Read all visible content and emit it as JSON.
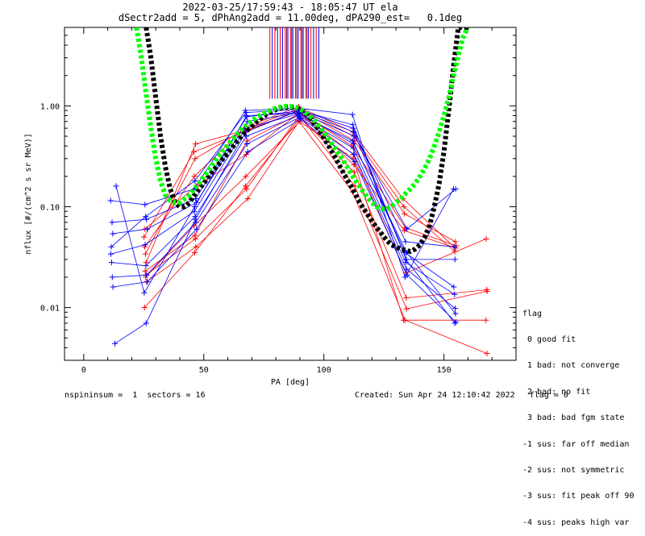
{
  "chart_data": {
    "type": "scatter",
    "title": "2022-03-25/17:59:43 - 18:05:47 UT ela",
    "subtitle": "dSectr2add = 5, dPhAng2add = 11.00deg, dPA290_est=   0.1deg",
    "xlabel": "PA [deg]",
    "ylabel": "nflux [#/(cm^2 s sr MeV)]",
    "xlim": [
      -8,
      180
    ],
    "ylim": [
      0.003,
      6.0
    ],
    "yscale": "log",
    "xticks": [
      0,
      50,
      100,
      150
    ],
    "yticks": [
      0.01,
      0.1,
      1.0
    ],
    "ytick_labels": [
      "0.01",
      "0.10",
      "1.00"
    ],
    "grid": false,
    "colors": {
      "red": "#ff0000",
      "blue": "#0000ff",
      "green": "#00ff00",
      "black": "#000000",
      "purple": "#800040"
    },
    "vertical_lines": {
      "red": [
        77.5,
        79.6,
        81.8,
        83.9,
        86.1,
        88.2,
        90.4,
        92.5,
        94.6,
        96.8
      ],
      "blue": [
        78.5,
        80.7,
        82.8,
        85.0,
        87.1,
        89.3,
        91.4,
        93.6,
        95.7,
        97.9
      ],
      "purple": [
        84.5,
        86.6,
        88.7,
        90.9,
        93.0
      ],
      "y_range": [
        1.18,
        6.0
      ]
    },
    "series": [
      {
        "color": "red",
        "values": [
          [
            25.4,
            0.04
          ],
          [
            46.1,
            0.2
          ],
          [
            67.6,
            0.62
          ],
          [
            89.5,
            0.98
          ],
          [
            112.1,
            0.55
          ],
          [
            133.0,
            0.12
          ],
          [
            154.2,
            0.04
          ]
        ]
      },
      {
        "color": "red",
        "values": [
          [
            25.7,
            0.034
          ],
          [
            46.4,
            0.3
          ],
          [
            67.9,
            0.6
          ],
          [
            89.9,
            0.94
          ],
          [
            112.4,
            0.5
          ],
          [
            133.3,
            0.1
          ],
          [
            154.5,
            0.036
          ]
        ]
      },
      {
        "color": "red",
        "values": [
          [
            26.0,
            0.028
          ],
          [
            46.6,
            0.42
          ],
          [
            68.2,
            0.58
          ],
          [
            90.3,
            0.9
          ],
          [
            112.7,
            0.45
          ],
          [
            133.6,
            0.085
          ],
          [
            154.8,
            0.045
          ]
        ]
      },
      {
        "color": "red",
        "values": [
          [
            25.1,
            0.05
          ],
          [
            45.9,
            0.35
          ],
          [
            67.3,
            0.56
          ],
          [
            89.1,
            0.88
          ],
          [
            111.8,
            0.4
          ],
          [
            133.9,
            0.062
          ],
          [
            155.1,
            0.041
          ]
        ]
      },
      {
        "color": "red",
        "values": [
          [
            25.6,
            0.023
          ],
          [
            46.3,
            0.052
          ],
          [
            68.0,
            0.45
          ],
          [
            90.1,
            0.84
          ],
          [
            112.3,
            0.33
          ],
          [
            134.1,
            0.022
          ],
          [
            167.6,
            0.048
          ]
        ]
      },
      {
        "color": "red",
        "values": [
          [
            25.9,
            0.021
          ],
          [
            46.5,
            0.048
          ],
          [
            67.8,
            0.15
          ],
          [
            89.7,
            0.8
          ],
          [
            112.6,
            0.22
          ],
          [
            134.3,
            0.0125
          ],
          [
            167.8,
            0.015
          ]
        ]
      },
      {
        "color": "red",
        "values": [
          [
            26.2,
            0.018
          ],
          [
            46.7,
            0.04
          ],
          [
            68.3,
            0.12
          ],
          [
            90.6,
            0.76
          ],
          [
            112.9,
            0.16
          ],
          [
            134.4,
            0.0097
          ],
          [
            168.0,
            0.0145
          ]
        ]
      },
      {
        "color": "red",
        "values": [
          [
            25.3,
            0.01
          ],
          [
            46.2,
            0.035
          ],
          [
            67.4,
            0.16
          ],
          [
            89.3,
            0.72
          ],
          [
            112.0,
            0.14
          ],
          [
            133.8,
            0.0075
          ],
          [
            167.9,
            0.0035
          ]
        ]
      },
      {
        "color": "red",
        "values": [
          [
            25.8,
            0.02
          ],
          [
            46.0,
            0.065
          ],
          [
            67.5,
            0.2
          ],
          [
            90.0,
            0.7
          ],
          [
            112.2,
            0.3
          ],
          [
            133.2,
            0.0075
          ],
          [
            167.5,
            0.0075
          ]
        ]
      },
      {
        "color": "red",
        "values": [
          [
            25.5,
            0.06
          ],
          [
            46.8,
            0.16
          ],
          [
            67.7,
            0.33
          ],
          [
            89.8,
            0.86
          ],
          [
            112.5,
            0.26
          ],
          [
            133.5,
            0.058
          ],
          [
            154.9,
            0.039
          ]
        ]
      },
      {
        "color": "blue",
        "values": [
          [
            11.2,
            0.115
          ],
          [
            25.5,
            0.105
          ],
          [
            46.0,
            0.15
          ],
          [
            67.3,
            0.9
          ],
          [
            89.2,
            0.95
          ],
          [
            111.9,
            0.82
          ],
          [
            133.8,
            0.02
          ],
          [
            154.0,
            0.15
          ]
        ]
      },
      {
        "color": "blue",
        "values": [
          [
            11.5,
            0.04
          ],
          [
            25.8,
            0.08
          ],
          [
            46.3,
            0.18
          ],
          [
            67.6,
            0.86
          ],
          [
            89.5,
            0.92
          ],
          [
            112.2,
            0.6
          ],
          [
            134.0,
            0.045
          ],
          [
            154.3,
            0.04
          ]
        ]
      },
      {
        "color": "blue",
        "values": [
          [
            11.8,
            0.07
          ],
          [
            26.1,
            0.075
          ],
          [
            46.6,
            0.12
          ],
          [
            67.9,
            0.78
          ],
          [
            89.8,
            0.89
          ],
          [
            112.5,
            0.55
          ],
          [
            134.3,
            0.03
          ],
          [
            154.6,
            0.03
          ]
        ]
      },
      {
        "color": "blue",
        "values": [
          [
            12.1,
            0.054
          ],
          [
            26.4,
            0.06
          ],
          [
            46.9,
            0.11
          ],
          [
            68.2,
            0.7
          ],
          [
            90.1,
            0.86
          ],
          [
            112.8,
            0.5
          ],
          [
            134.6,
            0.06
          ],
          [
            154.9,
            0.15
          ]
        ]
      },
      {
        "color": "blue",
        "values": [
          [
            11.3,
            0.034
          ],
          [
            25.6,
            0.042
          ],
          [
            46.1,
            0.09
          ],
          [
            67.4,
            0.6
          ],
          [
            89.3,
            0.83
          ],
          [
            112.0,
            0.45
          ],
          [
            133.9,
            0.035
          ],
          [
            154.1,
            0.016
          ]
        ]
      },
      {
        "color": "blue",
        "values": [
          [
            11.6,
            0.028
          ],
          [
            25.9,
            0.026
          ],
          [
            46.4,
            0.08
          ],
          [
            67.7,
            0.5
          ],
          [
            89.6,
            0.8
          ],
          [
            112.3,
            0.38
          ],
          [
            134.1,
            0.028
          ],
          [
            154.4,
            0.0135
          ]
        ]
      },
      {
        "color": "blue",
        "values": [
          [
            11.9,
            0.02
          ],
          [
            26.2,
            0.021
          ],
          [
            46.7,
            0.07
          ],
          [
            68.0,
            0.42
          ],
          [
            89.9,
            0.77
          ],
          [
            112.6,
            0.33
          ],
          [
            134.4,
            0.024
          ],
          [
            154.7,
            0.0098
          ]
        ]
      },
      {
        "color": "blue",
        "values": [
          [
            12.2,
            0.016
          ],
          [
            26.5,
            0.018
          ],
          [
            47.0,
            0.06
          ],
          [
            68.3,
            0.35
          ],
          [
            90.2,
            0.74
          ],
          [
            112.9,
            0.28
          ],
          [
            134.7,
            0.021
          ],
          [
            155.0,
            0.0072
          ]
        ]
      },
      {
        "color": "blue",
        "values": [
          [
            13.0,
            0.0044
          ],
          [
            26.0,
            0.007
          ],
          [
            46.5,
            0.075
          ],
          [
            67.5,
            0.55
          ],
          [
            89.4,
            0.9
          ],
          [
            112.1,
            0.65
          ],
          [
            134.2,
            0.03
          ],
          [
            154.5,
            0.007
          ]
        ]
      },
      {
        "color": "blue",
        "values": [
          [
            13.5,
            0.16
          ],
          [
            25.2,
            0.014
          ],
          [
            46.2,
            0.1
          ],
          [
            67.8,
            0.8
          ],
          [
            89.7,
            0.85
          ],
          [
            112.4,
            0.42
          ],
          [
            134.5,
            0.035
          ],
          [
            154.8,
            0.0087
          ]
        ]
      }
    ],
    "model_fits": [
      {
        "color": "black",
        "pa": [
          26,
          28,
          30,
          32,
          34,
          36,
          38,
          40,
          42,
          44,
          46,
          48,
          50,
          52,
          54,
          56,
          58,
          60,
          62,
          64,
          66,
          68,
          70,
          72,
          74,
          76,
          78,
          80,
          82,
          84,
          86,
          88,
          90,
          92,
          94,
          96,
          98,
          100,
          102,
          104,
          106,
          108,
          110,
          112,
          114,
          116,
          118,
          120,
          122,
          124,
          126,
          128,
          130,
          132,
          134,
          136,
          138,
          140,
          142,
          144,
          146,
          148,
          150,
          152,
          154,
          156,
          158,
          160
        ],
        "values": [
          6.0,
          3.0,
          1.2,
          0.5,
          0.25,
          0.15,
          0.11,
          0.1,
          0.1,
          0.11,
          0.13,
          0.15,
          0.17,
          0.2,
          0.23,
          0.26,
          0.3,
          0.34,
          0.39,
          0.45,
          0.51,
          0.57,
          0.63,
          0.7,
          0.76,
          0.82,
          0.87,
          0.92,
          0.95,
          0.97,
          0.98,
          0.97,
          0.93,
          0.86,
          0.77,
          0.67,
          0.57,
          0.48,
          0.4,
          0.33,
          0.27,
          0.22,
          0.18,
          0.15,
          0.12,
          0.1,
          0.085,
          0.072,
          0.062,
          0.054,
          0.047,
          0.042,
          0.04,
          0.038,
          0.037,
          0.036,
          0.038,
          0.042,
          0.05,
          0.065,
          0.1,
          0.17,
          0.35,
          0.9,
          2.5,
          6.0,
          6.0,
          6.0
        ]
      },
      {
        "color": "green",
        "pa": [
          22,
          24,
          26,
          28,
          30,
          32,
          34,
          36,
          38,
          40,
          42,
          44,
          46,
          48,
          50,
          52,
          54,
          56,
          58,
          60,
          62,
          64,
          66,
          68,
          70,
          72,
          74,
          76,
          78,
          80,
          82,
          84,
          86,
          88,
          90,
          92,
          94,
          96,
          98,
          100,
          102,
          104,
          106,
          108,
          110,
          112,
          114,
          116,
          118,
          120,
          122,
          124,
          126,
          128,
          130,
          132,
          134,
          136,
          138,
          140,
          142,
          144,
          146,
          148,
          150,
          152,
          154,
          156,
          158,
          160
        ],
        "values": [
          6.0,
          3.0,
          1.3,
          0.6,
          0.3,
          0.18,
          0.13,
          0.115,
          0.11,
          0.11,
          0.12,
          0.13,
          0.15,
          0.17,
          0.2,
          0.23,
          0.27,
          0.31,
          0.36,
          0.41,
          0.47,
          0.53,
          0.59,
          0.65,
          0.71,
          0.77,
          0.82,
          0.87,
          0.91,
          0.95,
          0.97,
          0.99,
          0.99,
          0.97,
          0.93,
          0.87,
          0.8,
          0.72,
          0.63,
          0.55,
          0.47,
          0.4,
          0.34,
          0.29,
          0.24,
          0.2,
          0.17,
          0.145,
          0.125,
          0.11,
          0.1,
          0.095,
          0.095,
          0.1,
          0.11,
          0.12,
          0.135,
          0.15,
          0.17,
          0.2,
          0.24,
          0.3,
          0.4,
          0.55,
          0.8,
          1.2,
          2.0,
          3.2,
          4.8,
          6.0
        ]
      }
    ]
  },
  "flag_legend": {
    "title": "flag",
    "lines": [
      " 0 good fit",
      " 1 bad: not converge",
      " 2 bad: no fit",
      " 3 bad: bad fgm state",
      "-1 sus: far off median",
      "-2 sus: not symmetric",
      "-3 sus: fit peak off 90",
      "-4 sus: peaks high var"
    ]
  },
  "footer": {
    "left": "nspininsum =  1  sectors = 16",
    "right": "Created: Sun Apr 24 12:10:42 2022   flag = 0"
  }
}
